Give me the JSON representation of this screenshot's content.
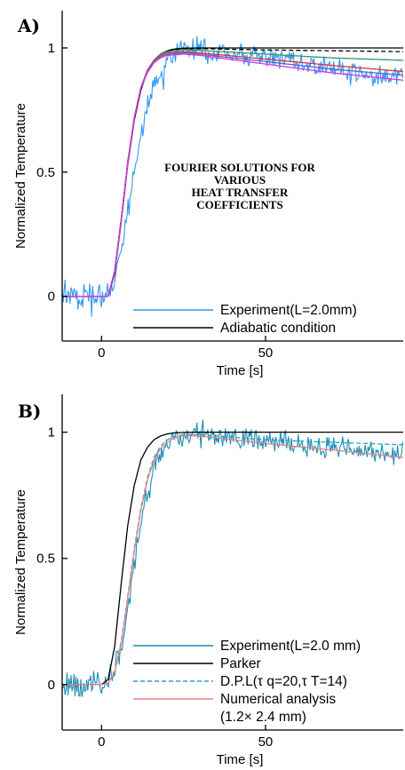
{
  "chart_data": [
    {
      "type": "line",
      "panel_label": "A)",
      "xlabel": "Time [s]",
      "ylabel": "Normalized Temperature",
      "xlim": [
        -12,
        92
      ],
      "ylim": [
        -0.18,
        1.15
      ],
      "xticks": [
        0,
        50
      ],
      "yticks": [
        0,
        0.5,
        1
      ],
      "xtick_labels": [
        "0",
        "50"
      ],
      "ytick_labels": [
        "0",
        "0.5",
        "1"
      ],
      "annotation": [
        "FOURIER SOLUTIONS FOR",
        "VARIOUS",
        "HEAT TRANSFER",
        "COEFFICIENTS"
      ],
      "legend_position": "bottom-right",
      "legend": [
        {
          "label": "Experiment(L=2.0mm)",
          "color": "#3399ee",
          "style": "solid"
        },
        {
          "label": "Adiabatic condition",
          "color": "#000000",
          "style": "solid"
        }
      ],
      "series": [
        {
          "name": "Experiment(L=2.0mm)",
          "color": "#3399ee",
          "kind": "noisy",
          "x": [
            -12,
            0,
            2,
            4,
            6,
            8,
            10,
            12,
            14,
            16,
            18,
            20,
            22,
            25,
            28,
            30,
            35,
            40,
            50,
            60,
            70,
            80,
            90
          ],
          "y": [
            0,
            0,
            0.02,
            0.07,
            0.18,
            0.33,
            0.5,
            0.65,
            0.77,
            0.85,
            0.91,
            0.95,
            0.97,
            0.99,
            1.0,
            1.0,
            0.99,
            0.98,
            0.96,
            0.94,
            0.92,
            0.9,
            0.88
          ]
        },
        {
          "name": "Adiabatic condition",
          "color": "#000000",
          "style": "solid",
          "x": [
            -12,
            2,
            4,
            6,
            8,
            10,
            12,
            14,
            16,
            18,
            20,
            22,
            25,
            30,
            50,
            92
          ],
          "y": [
            0,
            0,
            0.09,
            0.3,
            0.53,
            0.71,
            0.83,
            0.91,
            0.95,
            0.975,
            0.988,
            0.995,
            0.999,
            1.0,
            1.0,
            1.0
          ]
        },
        {
          "color": "#000000",
          "style": "dashed",
          "x": [
            -12,
            2,
            4,
            6,
            8,
            10,
            12,
            14,
            16,
            18,
            20,
            25,
            30,
            50,
            92
          ],
          "y": [
            0,
            0,
            0.1,
            0.31,
            0.54,
            0.72,
            0.84,
            0.91,
            0.95,
            0.975,
            0.988,
            0.997,
            0.997,
            0.992,
            0.985
          ]
        },
        {
          "color": "#2a9a6a",
          "style": "solid",
          "x": [
            -12,
            2,
            4,
            6,
            8,
            10,
            12,
            14,
            16,
            18,
            20,
            25,
            30,
            50,
            70,
            92
          ],
          "y": [
            0,
            0,
            0.1,
            0.31,
            0.54,
            0.72,
            0.84,
            0.91,
            0.95,
            0.975,
            0.985,
            0.993,
            0.99,
            0.975,
            0.96,
            0.95
          ]
        },
        {
          "color": "#dd3333",
          "style": "solid",
          "x": [
            -12,
            2,
            4,
            6,
            8,
            10,
            12,
            14,
            16,
            18,
            20,
            25,
            30,
            50,
            70,
            92
          ],
          "y": [
            0,
            0,
            0.1,
            0.31,
            0.54,
            0.72,
            0.84,
            0.91,
            0.95,
            0.97,
            0.98,
            0.985,
            0.98,
            0.955,
            0.93,
            0.905
          ]
        },
        {
          "color": "#5566dd",
          "style": "solid",
          "x": [
            -12,
            2,
            4,
            6,
            8,
            10,
            12,
            14,
            16,
            18,
            20,
            25,
            30,
            50,
            70,
            92
          ],
          "y": [
            0,
            0,
            0.1,
            0.31,
            0.54,
            0.72,
            0.84,
            0.905,
            0.945,
            0.965,
            0.975,
            0.98,
            0.975,
            0.945,
            0.915,
            0.89
          ]
        },
        {
          "color": "#dd33dd",
          "style": "solid",
          "x": [
            -12,
            2,
            4,
            6,
            8,
            10,
            12,
            14,
            16,
            18,
            20,
            25,
            30,
            50,
            70,
            92
          ],
          "y": [
            0,
            0,
            0.1,
            0.31,
            0.54,
            0.72,
            0.84,
            0.9,
            0.94,
            0.96,
            0.97,
            0.975,
            0.97,
            0.935,
            0.9,
            0.87
          ]
        }
      ]
    },
    {
      "type": "line",
      "panel_label": "B)",
      "xlabel": "Time [s]",
      "ylabel": "Normalized Temperature",
      "xlim": [
        -12,
        92
      ],
      "ylim": [
        -0.18,
        1.15
      ],
      "xticks": [
        0,
        50
      ],
      "yticks": [
        0,
        0.5,
        1
      ],
      "xtick_labels": [
        "0",
        "50"
      ],
      "ytick_labels": [
        "0",
        "0.5",
        "1"
      ],
      "legend_position": "bottom-right",
      "legend": [
        {
          "label": "Experiment(L=2.0 mm)",
          "color": "#1a8fb5",
          "style": "solid"
        },
        {
          "label": "Parker",
          "color": "#000000",
          "style": "solid"
        },
        {
          "label": "D.P.L(τ  q=20,τ  T=14)",
          "color": "#2aa0c0",
          "style": "dashed"
        },
        {
          "label": "Numerical analysis",
          "color": "#f08080",
          "style": "solid"
        },
        {
          "label": " (1.2× 2.4 mm)",
          "color": "",
          "style": "none"
        }
      ],
      "series": [
        {
          "name": "Experiment(L=2.0 mm)",
          "color": "#1a8fb5",
          "kind": "noisy",
          "x": [
            -12,
            0,
            2,
            4,
            6,
            8,
            10,
            12,
            14,
            16,
            18,
            20,
            22,
            25,
            28,
            30,
            35,
            40,
            50,
            60,
            70,
            80,
            90
          ],
          "y": [
            0,
            0,
            0.01,
            0.05,
            0.15,
            0.3,
            0.48,
            0.64,
            0.77,
            0.86,
            0.92,
            0.955,
            0.975,
            0.99,
            1.0,
            1.0,
            0.995,
            0.985,
            0.97,
            0.955,
            0.94,
            0.925,
            0.91
          ]
        },
        {
          "name": "Parker",
          "color": "#000000",
          "style": "solid",
          "x": [
            -12,
            0,
            2,
            4,
            6,
            8,
            10,
            12,
            14,
            16,
            18,
            20,
            22,
            25,
            30,
            50,
            92
          ],
          "y": [
            0,
            0,
            0.02,
            0.15,
            0.4,
            0.63,
            0.79,
            0.89,
            0.94,
            0.97,
            0.985,
            0.993,
            0.997,
            0.999,
            1.0,
            1.0,
            1.0
          ]
        },
        {
          "name": "D.P.L(τ  q=20,τ  T=14)",
          "color": "#2aa0c0",
          "style": "dashed",
          "x": [
            -12,
            0,
            2,
            4,
            6,
            8,
            10,
            12,
            14,
            16,
            18,
            20,
            22,
            25,
            30,
            40,
            50,
            70,
            92
          ],
          "y": [
            0,
            0,
            0.005,
            0.05,
            0.17,
            0.35,
            0.54,
            0.7,
            0.82,
            0.9,
            0.945,
            0.97,
            0.983,
            0.99,
            0.99,
            0.98,
            0.97,
            0.96,
            0.95
          ]
        },
        {
          "name": "Numerical analysis",
          "color": "#f08080",
          "style": "solid",
          "x": [
            -12,
            0,
            2,
            4,
            6,
            8,
            10,
            12,
            14,
            16,
            18,
            20,
            22,
            25,
            30,
            40,
            50,
            70,
            92
          ],
          "y": [
            0,
            0,
            0.005,
            0.05,
            0.16,
            0.34,
            0.53,
            0.69,
            0.81,
            0.89,
            0.935,
            0.96,
            0.975,
            0.985,
            0.985,
            0.97,
            0.955,
            0.93,
            0.9
          ]
        }
      ]
    }
  ]
}
